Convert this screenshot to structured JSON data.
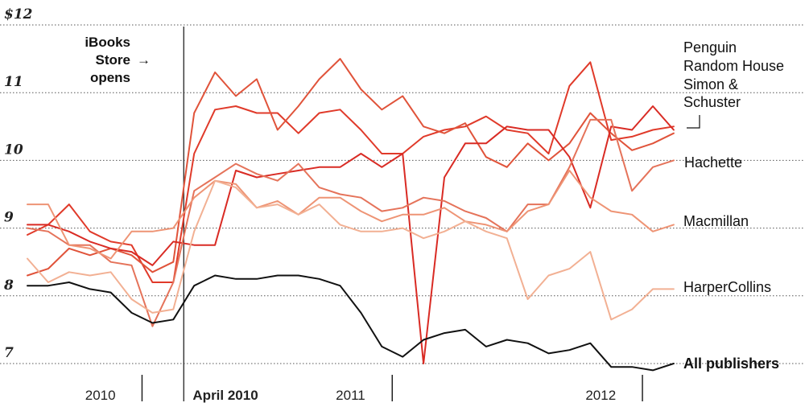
{
  "chart_data": {
    "type": "line",
    "y_ticks": [
      {
        "value": 12,
        "label": "$12"
      },
      {
        "value": 11,
        "label": "11"
      },
      {
        "value": 10,
        "label": "10"
      },
      {
        "value": 9,
        "label": "9"
      },
      {
        "value": 8,
        "label": "8"
      },
      {
        "value": 7,
        "label": "7"
      }
    ],
    "ylim": [
      6.8,
      12.2
    ],
    "x_labels": [
      {
        "label": "2010",
        "x": 3.5,
        "bold": false
      },
      {
        "label": "April 2010",
        "x": 9.5,
        "bold": true
      },
      {
        "label": "2011",
        "x": 15.5,
        "bold": false
      },
      {
        "label": "2012",
        "x": 27.5,
        "bold": false
      }
    ],
    "x_tick_marks": [
      5.5,
      17.5,
      29.5
    ],
    "xlim": [
      -0.5,
      36.5
    ],
    "event": {
      "x": 7.5,
      "text_lines": [
        "iBooks",
        "Store",
        "opens"
      ],
      "arrow": "→"
    },
    "series": [
      {
        "name": "Penguin",
        "color": "#e03a2a",
        "values": [
          8.9,
          9.05,
          9.35,
          8.95,
          8.8,
          8.75,
          8.2,
          8.2,
          10.1,
          10.75,
          10.8,
          10.7,
          10.7,
          10.4,
          10.7,
          10.75,
          10.45,
          10.1,
          10.1,
          10.35,
          10.45,
          10.5,
          10.65,
          10.45,
          10.4,
          10.1,
          11.1,
          11.45,
          10.3,
          10.35,
          10.45,
          10.5
        ]
      },
      {
        "name": "Random House",
        "color": "#e0533a",
        "values": [
          8.3,
          8.4,
          8.7,
          8.6,
          8.7,
          8.6,
          8.35,
          8.5,
          10.7,
          11.3,
          10.95,
          11.2,
          10.45,
          10.8,
          11.2,
          11.5,
          11.05,
          10.75,
          10.95,
          10.5,
          10.4,
          10.55,
          10.05,
          9.9,
          10.25,
          10.0,
          10.25,
          10.7,
          10.4,
          10.15,
          10.25,
          10.4
        ]
      },
      {
        "name": "Simon & Schuster",
        "color": "#d92b24",
        "values": [
          9.05,
          9.05,
          8.95,
          8.8,
          8.7,
          8.65,
          8.45,
          8.8,
          8.75,
          8.75,
          9.85,
          9.75,
          9.8,
          9.85,
          9.9,
          9.9,
          10.1,
          9.9,
          10.1,
          7.0,
          9.75,
          10.25,
          10.25,
          10.5,
          10.45,
          10.45,
          10.05,
          9.3,
          10.5,
          10.45,
          10.8,
          10.45
        ]
      },
      {
        "name": "Hachette",
        "color": "#e5735a",
        "values": [
          9.0,
          8.95,
          8.75,
          8.75,
          8.5,
          8.45,
          7.55,
          8.2,
          9.55,
          9.75,
          9.95,
          9.8,
          9.7,
          9.95,
          9.6,
          9.5,
          9.45,
          9.25,
          9.3,
          9.45,
          9.4,
          9.25,
          9.15,
          8.95,
          9.35,
          9.35,
          9.9,
          10.6,
          10.6,
          9.55,
          9.9,
          10.0
        ]
      },
      {
        "name": "Macmillan",
        "color": "#ee9475",
        "values": [
          9.35,
          9.35,
          8.75,
          8.7,
          8.55,
          8.95,
          8.95,
          9.0,
          9.45,
          9.7,
          9.65,
          9.3,
          9.4,
          9.2,
          9.45,
          9.45,
          9.25,
          9.1,
          9.2,
          9.2,
          9.3,
          9.1,
          9.05,
          8.95,
          9.25,
          9.35,
          9.85,
          9.45,
          9.25,
          9.2,
          8.95,
          9.05
        ]
      },
      {
        "name": "HarperCollins",
        "color": "#f2b093",
        "values": [
          8.55,
          8.2,
          8.35,
          8.3,
          8.35,
          7.95,
          7.75,
          7.8,
          8.95,
          9.7,
          9.6,
          9.3,
          9.35,
          9.2,
          9.35,
          9.05,
          8.95,
          8.95,
          9.0,
          8.85,
          8.95,
          9.1,
          8.95,
          8.85,
          7.95,
          8.3,
          8.4,
          8.65,
          7.65,
          7.8,
          8.1,
          8.1
        ]
      },
      {
        "name": "All publishers",
        "color": "#111111",
        "values": [
          8.15,
          8.15,
          8.2,
          8.1,
          8.05,
          7.75,
          7.6,
          7.65,
          8.15,
          8.3,
          8.25,
          8.25,
          8.3,
          8.3,
          8.25,
          8.15,
          7.75,
          7.25,
          7.1,
          7.35,
          7.45,
          7.5,
          7.25,
          7.35,
          7.3,
          7.15,
          7.2,
          7.3,
          6.95,
          6.95,
          6.9,
          7.0
        ]
      }
    ],
    "series_labels": [
      {
        "text": "Penguin",
        "bold": false
      },
      {
        "text": "Random House",
        "bold": false
      },
      {
        "text": "Simon &",
        "bold": false
      },
      {
        "text": "Schuster",
        "bold": false
      },
      {
        "text": "Hachette",
        "bold": false
      },
      {
        "text": "Macmillan",
        "bold": false
      },
      {
        "text": "HarperCollins",
        "bold": false
      },
      {
        "text": "All publishers",
        "bold": true
      }
    ]
  }
}
